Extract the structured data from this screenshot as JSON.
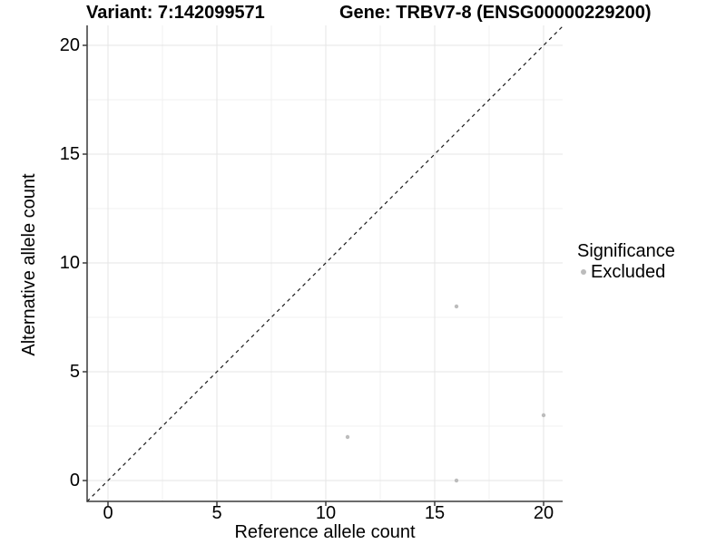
{
  "titles": {
    "variant": "Variant: 7:142099571",
    "gene": "Gene: TRBV7-8 (ENSG00000229200)"
  },
  "legend": {
    "title": "Significance",
    "items": [
      {
        "label": "Excluded",
        "color": "#bcbcbc"
      }
    ]
  },
  "colors": {
    "axis_line": "#3a3a3a",
    "grid_major": "#e5e5e5",
    "grid_minor": "#f0f0f0",
    "reference_line": "#1a1a1a",
    "point": "#bcbcbc",
    "text": "#000000"
  },
  "chart_data": {
    "type": "scatter",
    "title_left": "Variant: 7:142099571",
    "title_right": "Gene: TRBV7-8 (ENSG00000229200)",
    "xlabel": "Reference allele count",
    "ylabel": "Alternative allele count",
    "xlim": [
      -1,
      21
    ],
    "ylim": [
      -1,
      21
    ],
    "x_ticks": [
      0,
      5,
      10,
      15,
      20
    ],
    "y_ticks": [
      0,
      5,
      10,
      15,
      20
    ],
    "x_minor_ticks": [
      2.5,
      7.5,
      12.5,
      17.5
    ],
    "y_minor_ticks": [
      2.5,
      7.5,
      12.5,
      17.5
    ],
    "grid": true,
    "legend_position": "right",
    "legend_title": "Significance",
    "series": [
      {
        "name": "Excluded",
        "color": "#bcbcbc",
        "points": [
          [
            11,
            2
          ],
          [
            16,
            8
          ],
          [
            16,
            0
          ],
          [
            20,
            3
          ]
        ]
      }
    ],
    "reference_line": {
      "type": "identity y=x",
      "style": "dashed",
      "color": "#1a1a1a"
    }
  }
}
